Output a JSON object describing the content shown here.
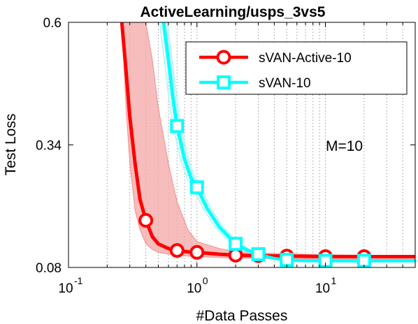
{
  "chart_data": {
    "type": "line",
    "title": "ActiveLearning/usps_3vs5",
    "xlabel": "#Data Passes",
    "ylabel": "Test Loss",
    "x_scale": "log",
    "xlim": [
      0.1,
      50
    ],
    "ylim": [
      0.08,
      0.6
    ],
    "x_ticks": [
      {
        "value": 0.1,
        "base": "10",
        "exp": "-1"
      },
      {
        "value": 1,
        "base": "10",
        "exp": "0"
      },
      {
        "value": 10,
        "base": "10",
        "exp": "1"
      }
    ],
    "y_ticks": [
      {
        "value": 0.6,
        "label": "0.6"
      },
      {
        "value": 0.34,
        "label": "0.34"
      },
      {
        "value": 0.08,
        "label": "0.08"
      }
    ],
    "grid": "vertical dotted minor and major lines",
    "legend_position": "top-right",
    "annotation": "M=10",
    "series": [
      {
        "name": "sVAN-Active-10",
        "color": "#ff0000",
        "band_color": "#f4a6a6",
        "marker": "circle",
        "x": [
          0.26,
          0.28,
          0.3,
          0.33,
          0.36,
          0.4,
          0.45,
          0.5,
          0.6,
          0.7,
          0.85,
          1,
          1.5,
          2,
          3,
          5,
          10,
          20,
          50
        ],
        "y": [
          0.6,
          0.5,
          0.4,
          0.3,
          0.225,
          0.18,
          0.145,
          0.13,
          0.12,
          0.116,
          0.113,
          0.112,
          0.108,
          0.106,
          0.105,
          0.104,
          0.103,
          0.103,
          0.103
        ],
        "upper": [
          0.6,
          0.6,
          0.6,
          0.6,
          0.6,
          0.6,
          0.52,
          0.42,
          0.3,
          0.22,
          0.16,
          0.135,
          0.12,
          0.114,
          0.111,
          0.109,
          0.107,
          0.106,
          0.106
        ],
        "lower": [
          0.6,
          0.42,
          0.3,
          0.2,
          0.16,
          0.13,
          0.118,
          0.112,
          0.108,
          0.106,
          0.104,
          0.103,
          0.101,
          0.1,
          0.099,
          0.098,
          0.097,
          0.097,
          0.097
        ],
        "marker_x": [
          0.4,
          0.7,
          1,
          2,
          3,
          5,
          10,
          20
        ],
        "marker_y": [
          0.18,
          0.116,
          0.112,
          0.106,
          0.105,
          0.104,
          0.103,
          0.103
        ]
      },
      {
        "name": "sVAN-10",
        "color": "#00ffff",
        "band_color": "#aaf4f4",
        "marker": "square",
        "x": [
          0.55,
          0.6,
          0.65,
          0.7,
          0.8,
          0.9,
          1,
          1.2,
          1.5,
          2,
          2.5,
          3,
          4,
          5,
          7,
          10,
          20,
          50
        ],
        "y": [
          0.6,
          0.52,
          0.44,
          0.38,
          0.31,
          0.27,
          0.25,
          0.205,
          0.165,
          0.13,
          0.116,
          0.108,
          0.099,
          0.096,
          0.094,
          0.094,
          0.094,
          0.094
        ],
        "marker_x": [
          0.7,
          1,
          2,
          3,
          5,
          10,
          20
        ],
        "marker_y": [
          0.38,
          0.25,
          0.13,
          0.108,
          0.096,
          0.094,
          0.094
        ]
      }
    ]
  }
}
